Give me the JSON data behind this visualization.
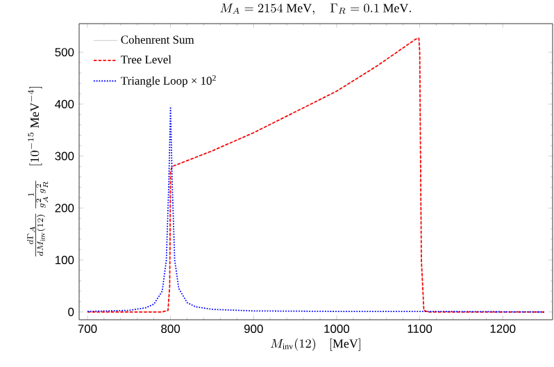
{
  "chart_data": {
    "type": "line",
    "title": "M_A = 2154~\\mathrm{MeV},\\quad \\Gamma_R = 0.1~\\mathrm{MeV}.",
    "xlabel": "M_{\\mathrm{inv}}(12)\\quad [\\mathrm{MeV}]",
    "ylabel": "\\frac{d\\Gamma_A}{dM_{\\mathrm{inv}}(12)}\\,\\frac{1}{g_A^2\\,g_R^2}\\quad [10^{-15}\\ \\mathrm{MeV}^{-4}]",
    "xlim": [
      690,
      1260
    ],
    "ylim": [
      -15,
      555
    ],
    "xticks": [
      700,
      800,
      900,
      1000,
      1100,
      1200
    ],
    "yticks": [
      0,
      100,
      200,
      300,
      400,
      500
    ],
    "grid": false,
    "legend": "top left",
    "series": [
      {
        "name": "Cohenrent Sum",
        "color": "#c8c8c8",
        "line_style": "solid",
        "x": [
          700,
          790,
          797,
          799,
          800,
          802,
          850,
          900,
          950,
          1000,
          1050,
          1095,
          1099,
          1100,
          1102,
          1105,
          1110,
          1250
        ],
        "values": [
          0,
          0,
          3,
          50,
          270,
          280,
          310,
          345,
          385,
          425,
          475,
          525,
          527,
          500,
          100,
          3,
          0,
          0
        ]
      },
      {
        "name": "Tree Level",
        "color": "#ff0000",
        "line_style": "dashed",
        "x": [
          700,
          790,
          797,
          799,
          800,
          802,
          850,
          900,
          950,
          1000,
          1050,
          1095,
          1099,
          1100,
          1102,
          1105,
          1110,
          1250
        ],
        "values": [
          0,
          0,
          3,
          50,
          270,
          280,
          310,
          345,
          385,
          425,
          475,
          525,
          527,
          500,
          100,
          3,
          0,
          0
        ]
      },
      {
        "name": "Triangle Loop × 10$^{2}$",
        "color": "#0000ff",
        "line_style": "dotted",
        "x": [
          700,
          750,
          770,
          780,
          790,
          795,
          798,
          800,
          802,
          805,
          810,
          820,
          830,
          850,
          900,
          1000,
          1100,
          1250
        ],
        "values": [
          1,
          3,
          8,
          15,
          40,
          100,
          250,
          395,
          250,
          100,
          45,
          18,
          10,
          5,
          2,
          1,
          1,
          0
        ]
      }
    ]
  }
}
